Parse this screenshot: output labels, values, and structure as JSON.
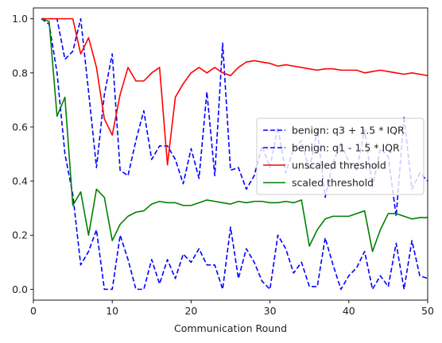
{
  "chart_data": {
    "type": "line",
    "title": "",
    "xlabel": "Communication Round",
    "ylabel": "",
    "xlim": [
      0,
      50
    ],
    "ylim": [
      -0.04,
      1.04
    ],
    "xticks": [
      0,
      10,
      20,
      30,
      40,
      50
    ],
    "yticks": [
      0.0,
      0.2,
      0.4,
      0.6,
      0.8,
      1.0
    ],
    "xtick_labels": [
      "0",
      "10",
      "20",
      "30",
      "40",
      "50"
    ],
    "ytick_labels": [
      "0.0",
      "0.2",
      "0.4",
      "0.6",
      "0.8",
      "1.0"
    ],
    "grid": false,
    "legend_position": "right",
    "x": [
      1,
      2,
      3,
      4,
      5,
      6,
      7,
      8,
      9,
      10,
      11,
      12,
      13,
      14,
      15,
      16,
      17,
      18,
      19,
      20,
      21,
      22,
      23,
      24,
      25,
      26,
      27,
      28,
      29,
      30,
      31,
      32,
      33,
      34,
      35,
      36,
      37,
      38,
      39,
      40,
      41,
      42,
      43,
      44,
      45,
      46,
      47,
      48,
      49,
      50
    ],
    "series": [
      {
        "name": "benign: q3 + 1.5 * IQR",
        "color": "#0000ff",
        "style": "dashed",
        "values": [
          1.0,
          1.0,
          1.0,
          0.85,
          0.88,
          1.0,
          0.73,
          0.45,
          0.72,
          0.87,
          0.44,
          0.42,
          0.55,
          0.66,
          0.48,
          0.53,
          0.53,
          0.48,
          0.39,
          0.52,
          0.41,
          0.73,
          0.42,
          0.91,
          0.44,
          0.45,
          0.37,
          0.42,
          0.53,
          0.45,
          0.6,
          0.43,
          0.52,
          0.55,
          0.44,
          0.59,
          0.34,
          0.47,
          0.54,
          0.47,
          0.44,
          0.59,
          0.38,
          0.52,
          0.49,
          0.27,
          0.64,
          0.37,
          0.43,
          0.4
        ]
      },
      {
        "name": "benign: q1 - 1.5 * IQR",
        "color": "#0000ff",
        "style": "dashed",
        "values": [
          1.0,
          0.98,
          0.8,
          0.5,
          0.35,
          0.09,
          0.14,
          0.22,
          0.0,
          0.0,
          0.2,
          0.11,
          0.0,
          0.0,
          0.11,
          0.02,
          0.11,
          0.04,
          0.13,
          0.1,
          0.15,
          0.09,
          0.09,
          0.0,
          0.23,
          0.04,
          0.15,
          0.1,
          0.03,
          0.0,
          0.2,
          0.15,
          0.06,
          0.1,
          0.01,
          0.01,
          0.19,
          0.09,
          0.0,
          0.05,
          0.08,
          0.14,
          0.0,
          0.05,
          0.01,
          0.17,
          0.0,
          0.18,
          0.05,
          0.04
        ]
      },
      {
        "name": "unscaled threshold",
        "color": "#ff0000",
        "style": "solid",
        "values": [
          1.0,
          1.0,
          1.0,
          1.0,
          1.0,
          0.87,
          0.93,
          0.82,
          0.63,
          0.57,
          0.72,
          0.82,
          0.77,
          0.77,
          0.8,
          0.82,
          0.46,
          0.71,
          0.76,
          0.8,
          0.82,
          0.8,
          0.82,
          0.8,
          0.79,
          0.82,
          0.84,
          0.845,
          0.84,
          0.835,
          0.825,
          0.83,
          0.825,
          0.82,
          0.815,
          0.81,
          0.815,
          0.815,
          0.81,
          0.81,
          0.81,
          0.8,
          0.805,
          0.81,
          0.805,
          0.8,
          0.795,
          0.8,
          0.795,
          0.79
        ]
      },
      {
        "name": "scaled threshold",
        "color": "#008000",
        "style": "solid",
        "values": [
          1.0,
          0.99,
          0.64,
          0.71,
          0.31,
          0.36,
          0.2,
          0.37,
          0.34,
          0.18,
          0.24,
          0.27,
          0.285,
          0.29,
          0.315,
          0.325,
          0.32,
          0.32,
          0.31,
          0.31,
          0.32,
          0.33,
          0.325,
          0.32,
          0.315,
          0.325,
          0.32,
          0.325,
          0.325,
          0.32,
          0.32,
          0.325,
          0.32,
          0.33,
          0.16,
          0.22,
          0.26,
          0.27,
          0.27,
          0.27,
          0.28,
          0.29,
          0.14,
          0.22,
          0.28,
          0.28,
          0.27,
          0.26,
          0.265,
          0.265
        ]
      }
    ]
  }
}
